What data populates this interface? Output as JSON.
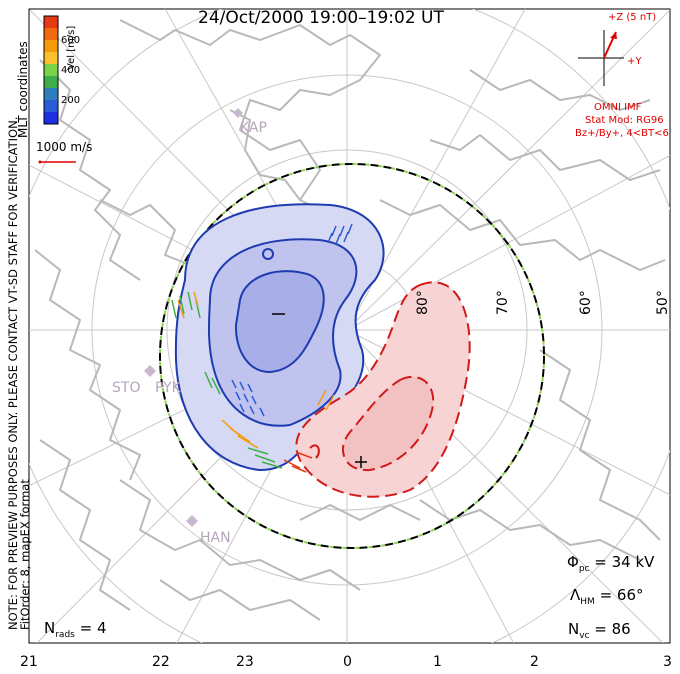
{
  "title": "24/Oct/2000 19:00–19:02 UT",
  "colorbar": {
    "ticks": [
      "600",
      "400",
      "200"
    ],
    "label": "Vel [m/s]",
    "colors": [
      "#e53a12",
      "#f26a0f",
      "#f59b0a",
      "#fbc02d",
      "#7bd34a",
      "#3fae4a",
      "#2f7fbf",
      "#2b5bd6",
      "#1d2fe0"
    ]
  },
  "coordinates_label": "MLT coordinates",
  "velocity_scale": "1000 m/s",
  "imf": {
    "z_label": "+Z (5 nT)",
    "y_label": "+Y",
    "source": "OMNI IMF",
    "stat_mod": "Stat Mod: RG96",
    "condition": "Bz+/By+, 4<BT<6"
  },
  "stations": [
    "KAP",
    "STO",
    "PYK",
    "HAN"
  ],
  "latitude_labels": [
    "50°",
    "60°",
    "70°",
    "80°"
  ],
  "side_note_1": "NOTE: FOR PREVIEW PURPOSES ONLY. PLEASE CONTACT VT-SD STAFF FOR VERIFICATION.",
  "side_note_2": "FitOrder: 8, mapEX format",
  "cells": {
    "negative_symbol": "−",
    "positive_symbol": "+"
  },
  "stats": {
    "phi_pc": {
      "symbol": "Φ",
      "sub": "pc",
      "value": "= 34 kV"
    },
    "lambda_hm": {
      "symbol": "Λ",
      "sub": "HM",
      "value": "= 66°"
    },
    "n_vc": {
      "symbol": "N",
      "sub": "vc",
      "value": "= 86"
    },
    "n_rads": {
      "symbol": "N",
      "sub": "rads",
      "value": "= 4"
    }
  },
  "mlt_ticks": [
    "21",
    "22",
    "23",
    "0",
    "1",
    "2",
    "3"
  ],
  "colors": {
    "potential_negative": "#1f3bb0",
    "potential_positive": "#d11a1a",
    "grid": "#c8c8c8",
    "coast": "#b9b9b9",
    "hmb": "#8fd24f"
  }
}
